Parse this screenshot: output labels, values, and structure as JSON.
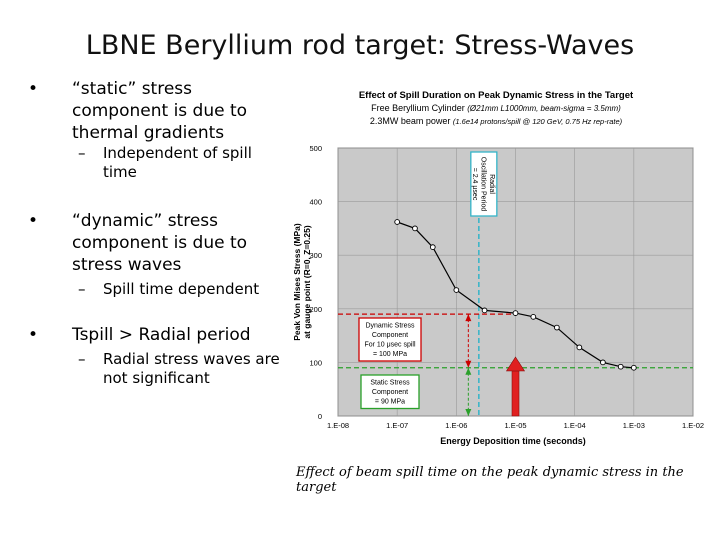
{
  "slide": {
    "title": "LBNE Beryllium rod target: Stress-Waves",
    "bullets": [
      {
        "text": "“static” stress component is due to thermal gradients",
        "sub": "Independent of spill time"
      },
      {
        "text": "“dynamic” stress component is due to stress waves",
        "sub": "Spill time dependent"
      },
      {
        "text": "Tspill > Radial period",
        "sub": "Radial stress waves are not significant"
      }
    ],
    "bullet_symbol": "•",
    "sub_symbol": "–",
    "caption": "Effect of beam spill time on the peak dynamic stress in the target"
  },
  "chart_data": {
    "type": "line",
    "title": "Effect of Spill Duration on Peak Dynamic Stress in the Target",
    "subtitle1_main": "Free Beryllium Cylinder ",
    "subtitle1_detail": "(Ø21mm L1000mm, beam-sigma = 3.5mm)",
    "subtitle2_main": "2.3MW beam power ",
    "subtitle2_detail": "(1.6e14 protons/spill @ 120 GeV, 0.75 Hz rep-rate)",
    "xlabel": "Energy Deposition time (seconds)",
    "ylabel_line1": "Peak Von Mises Stress (MPa)",
    "ylabel_line2": "at gauge point (R=0, Z=0.25)",
    "x_log_range": [
      -8,
      -2
    ],
    "x_tick_labels": [
      "1.E-08",
      "1.E-07",
      "1.E-06",
      "1.E-05",
      "1.E-04",
      "1.E-03",
      "1.E-02"
    ],
    "ylim": [
      0,
      500
    ],
    "y_ticks": [
      0,
      100,
      200,
      300,
      400,
      500
    ],
    "grid": true,
    "series": [
      {
        "color": "#000000",
        "points": [
          {
            "x": 1e-07,
            "y": 362
          },
          {
            "x": 2e-07,
            "y": 350
          },
          {
            "x": 4e-07,
            "y": 315
          },
          {
            "x": 1e-06,
            "y": 235
          },
          {
            "x": 3e-06,
            "y": 197
          },
          {
            "x": 1e-05,
            "y": 192
          },
          {
            "x": 2e-05,
            "y": 185
          },
          {
            "x": 5e-05,
            "y": 165
          },
          {
            "x": 0.00012,
            "y": 128
          },
          {
            "x": 0.0003,
            "y": 100
          },
          {
            "x": 0.0006,
            "y": 92
          },
          {
            "x": 0.001,
            "y": 90
          }
        ]
      }
    ],
    "annotations": {
      "radial_period": {
        "x": 2.4e-06,
        "text": "Radial Oscillation Period = 2.4 μsec",
        "color": "#34b4c8"
      },
      "dynamic": {
        "y": 190,
        "x": 1e-05,
        "text": "Dynamic Stress Component For 10 μsec spill = 100 MPa",
        "color": "#cc0000"
      },
      "static": {
        "y": 90,
        "text": "Static Stress Component = 90 MPa",
        "color": "#2aa02a"
      },
      "arrow_x": 1e-05,
      "arrow_color": "#e02020"
    }
  }
}
